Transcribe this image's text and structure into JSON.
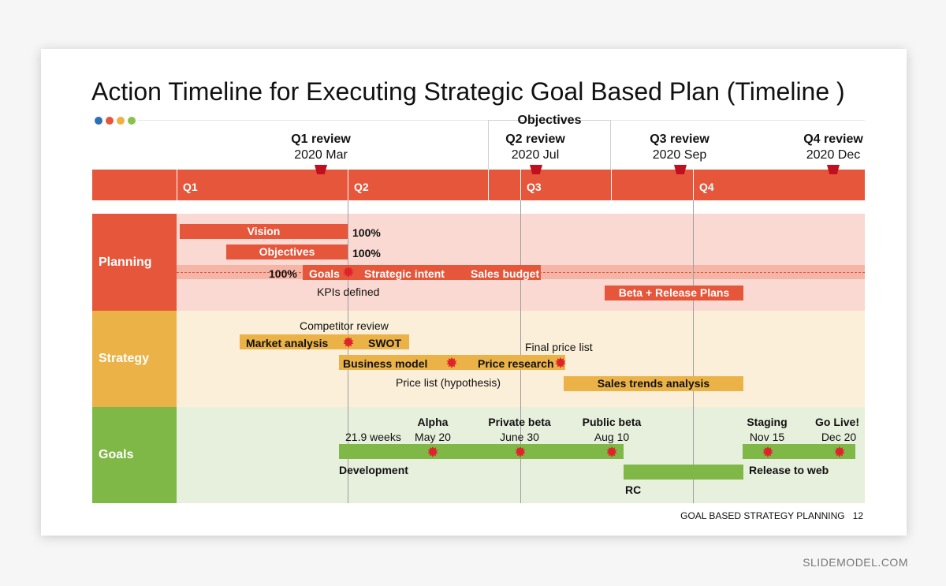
{
  "title": "Action Timeline for Executing Strategic Goal Based Plan (Timeline )",
  "dots": [
    "#2d6fb7",
    "#e5563a",
    "#f0b041",
    "#8ac04c"
  ],
  "objectives_label": "Objectives",
  "reviews": [
    {
      "name": "Q1 review",
      "date": "2020 Mar"
    },
    {
      "name": "Q2 review",
      "date": "2020 Jul"
    },
    {
      "name": "Q3 review",
      "date": "2020 Sep"
    },
    {
      "name": "Q4 review",
      "date": "2020 Dec"
    }
  ],
  "quarters": [
    "Q1",
    "Q2",
    "Q3",
    "Q4"
  ],
  "rows": {
    "planning": "Planning",
    "strategy": "Strategy",
    "goals": "Goals"
  },
  "planning": {
    "vision": "Vision",
    "vision_pct": "100%",
    "objectives": "Objectives",
    "objectives_pct": "100%",
    "goals_pct": "100%",
    "goals": "Goals",
    "strategic_intent": "Strategic intent",
    "sales_budget": "Sales budget",
    "kpis": "KPIs defined",
    "beta_release": "Beta + Release Plans"
  },
  "strategy": {
    "competitor_review": "Competitor review",
    "market_analysis": "Market analysis",
    "swot": "SWOT",
    "final_price_list": "Final price list",
    "business_model": "Business model",
    "price_research": "Price research",
    "price_list_hyp": "Price list (hypothesis)",
    "sales_trends": "Sales trends analysis"
  },
  "goals": {
    "weeks": "21.9 weeks",
    "alpha": "Alpha",
    "alpha_date": "May 20",
    "private_beta": "Private beta",
    "private_beta_date": "June 30",
    "public_beta": "Public beta",
    "public_beta_date": "Aug 10",
    "staging": "Staging",
    "staging_date": "Nov 15",
    "go_live": "Go Live!",
    "go_live_date": "Dec 20",
    "development": "Development",
    "rc": "RC",
    "release_to_web": "Release to web"
  },
  "footer": {
    "label": "GOAL BASED STRATEGY PLANNING",
    "page": "12"
  },
  "watermark": "SLIDEMODEL.COM",
  "colors": {
    "orange": "#e5563a",
    "yellow": "#ebb347",
    "green": "#80b847",
    "planning_bg": "#f9d9d2",
    "strategy_bg": "#fcefd9",
    "goals_bg": "#e6f0dc",
    "star": "#e0232b"
  }
}
